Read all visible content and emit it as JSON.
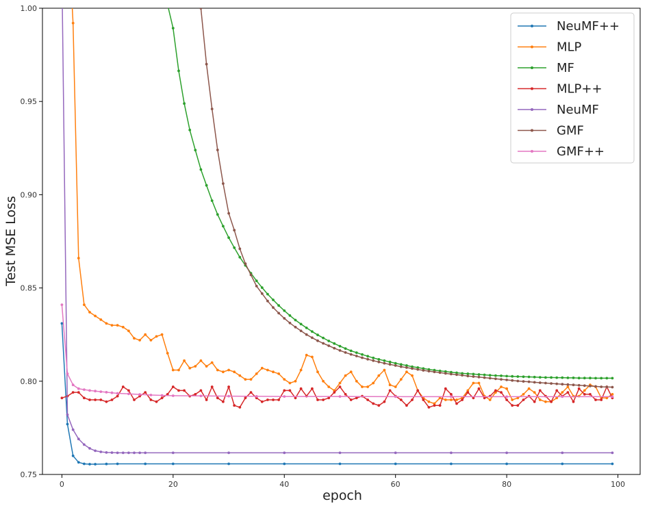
{
  "chart_data": {
    "type": "line",
    "title": "",
    "xlabel": "epoch",
    "ylabel": "Test MSE Loss",
    "xlim": [
      -3.5,
      104
    ],
    "ylim": [
      0.75,
      1.0
    ],
    "xticks": [
      "0",
      "20",
      "40",
      "60",
      "80",
      "100"
    ],
    "yticks": [
      "0.75",
      "0.80",
      "0.85",
      "0.90",
      "0.95",
      "1.00"
    ],
    "grid": false,
    "legend_position": "top-right",
    "series": [
      {
        "name": "NeuMF++",
        "color": "#1f77b4",
        "x": [
          0,
          1,
          2,
          3,
          4,
          5,
          6,
          8,
          10,
          15,
          20,
          30,
          40,
          50,
          60,
          70,
          80,
          90,
          99
        ],
        "y": [
          0.831,
          0.777,
          0.76,
          0.7565,
          0.7557,
          0.7555,
          0.7555,
          0.7556,
          0.7557,
          0.7557,
          0.7557,
          0.7557,
          0.7557,
          0.7557,
          0.7557,
          0.7557,
          0.7557,
          0.7557,
          0.7557
        ]
      },
      {
        "name": "MLP",
        "color": "#ff7f0e",
        "x": [
          1,
          2,
          3,
          4,
          5,
          6,
          7,
          8,
          9,
          10,
          11,
          12,
          13,
          14,
          15,
          16,
          17,
          18,
          19,
          20,
          21,
          22,
          23,
          24,
          25,
          26,
          27,
          28,
          29,
          30,
          31,
          32,
          33,
          34,
          35,
          36,
          37,
          38,
          39,
          40,
          41,
          42,
          43,
          44,
          45,
          46,
          47,
          48,
          49,
          50,
          51,
          52,
          53,
          54,
          55,
          56,
          57,
          58,
          59,
          60,
          61,
          62,
          63,
          64,
          65,
          66,
          67,
          68,
          69,
          70,
          71,
          72,
          73,
          74,
          75,
          76,
          77,
          78,
          79,
          80,
          81,
          82,
          83,
          84,
          85,
          86,
          87,
          88,
          89,
          90,
          91,
          92,
          93,
          94,
          95,
          96,
          97,
          98,
          99
        ],
        "y": [
          1.05,
          0.992,
          0.866,
          0.841,
          0.837,
          0.835,
          0.833,
          0.831,
          0.83,
          0.83,
          0.829,
          0.827,
          0.823,
          0.822,
          0.825,
          0.822,
          0.824,
          0.825,
          0.815,
          0.806,
          0.806,
          0.811,
          0.807,
          0.808,
          0.811,
          0.808,
          0.81,
          0.806,
          0.805,
          0.806,
          0.805,
          0.803,
          0.801,
          0.801,
          0.804,
          0.807,
          0.806,
          0.805,
          0.804,
          0.801,
          0.799,
          0.8,
          0.806,
          0.814,
          0.813,
          0.805,
          0.8,
          0.797,
          0.795,
          0.799,
          0.803,
          0.805,
          0.8,
          0.797,
          0.797,
          0.799,
          0.803,
          0.806,
          0.798,
          0.797,
          0.801,
          0.805,
          0.803,
          0.795,
          0.791,
          0.789,
          0.788,
          0.791,
          0.79,
          0.79,
          0.79,
          0.791,
          0.795,
          0.799,
          0.799,
          0.792,
          0.79,
          0.794,
          0.797,
          0.796,
          0.79,
          0.791,
          0.793,
          0.796,
          0.794,
          0.79,
          0.789,
          0.789,
          0.791,
          0.794,
          0.797,
          0.792,
          0.792,
          0.795,
          0.798,
          0.797,
          0.791,
          0.791,
          0.793
        ]
      },
      {
        "name": "MF",
        "color": "#2ca02c",
        "x": [
          19,
          20,
          21,
          22,
          23,
          24,
          25,
          26,
          27,
          28,
          29,
          30,
          31,
          32,
          33,
          34,
          35,
          36,
          37,
          38,
          39,
          40,
          41,
          42,
          43,
          44,
          45,
          46,
          47,
          48,
          49,
          50,
          51,
          52,
          53,
          54,
          55,
          56,
          57,
          58,
          59,
          60,
          61,
          62,
          63,
          64,
          65,
          66,
          67,
          68,
          69,
          70,
          71,
          72,
          73,
          74,
          75,
          76,
          77,
          78,
          79,
          80,
          81,
          82,
          83,
          84,
          85,
          86,
          87,
          88,
          89,
          90,
          91,
          92,
          93,
          94,
          95,
          96,
          97,
          98,
          99
        ],
        "y": [
          1.002,
          0.9893,
          0.9664,
          0.9489,
          0.9347,
          0.9239,
          0.9135,
          0.905,
          0.8968,
          0.8894,
          0.8831,
          0.877,
          0.8716,
          0.8665,
          0.8621,
          0.8579,
          0.8538,
          0.8502,
          0.8467,
          0.8436,
          0.8406,
          0.8378,
          0.8352,
          0.8328,
          0.8306,
          0.8286,
          0.8266,
          0.8248,
          0.8232,
          0.8216,
          0.8202,
          0.8188,
          0.8175,
          0.8163,
          0.8153,
          0.8143,
          0.8134,
          0.8125,
          0.8117,
          0.811,
          0.8103,
          0.8096,
          0.809,
          0.8084,
          0.8078,
          0.8073,
          0.8068,
          0.8063,
          0.8059,
          0.8055,
          0.8052,
          0.8048,
          0.8045,
          0.8042,
          0.804,
          0.8038,
          0.8036,
          0.8034,
          0.8032,
          0.803,
          0.8029,
          0.8027,
          0.8026,
          0.8025,
          0.8024,
          0.8023,
          0.8022,
          0.8021,
          0.802,
          0.802,
          0.8019,
          0.8019,
          0.8018,
          0.8018,
          0.8017,
          0.8017,
          0.8017,
          0.8016,
          0.8016,
          0.8016,
          0.8016
        ]
      },
      {
        "name": "MLP++",
        "color": "#d62728",
        "x": [
          0,
          1,
          2,
          3,
          4,
          5,
          6,
          7,
          8,
          9,
          10,
          11,
          12,
          13,
          14,
          15,
          16,
          17,
          18,
          19,
          20,
          21,
          22,
          23,
          24,
          25,
          26,
          27,
          28,
          29,
          30,
          31,
          32,
          33,
          34,
          35,
          36,
          37,
          38,
          39,
          40,
          41,
          42,
          43,
          44,
          45,
          46,
          47,
          48,
          49,
          50,
          51,
          52,
          53,
          54,
          55,
          56,
          57,
          58,
          59,
          60,
          61,
          62,
          63,
          64,
          65,
          66,
          67,
          68,
          69,
          70,
          71,
          72,
          73,
          74,
          75,
          76,
          77,
          78,
          79,
          80,
          81,
          82,
          83,
          84,
          85,
          86,
          87,
          88,
          89,
          90,
          91,
          92,
          93,
          94,
          95,
          96,
          97,
          98,
          99
        ],
        "y": [
          0.791,
          0.792,
          0.794,
          0.794,
          0.791,
          0.79,
          0.79,
          0.79,
          0.789,
          0.79,
          0.792,
          0.797,
          0.795,
          0.79,
          0.792,
          0.794,
          0.79,
          0.789,
          0.791,
          0.793,
          0.797,
          0.795,
          0.795,
          0.792,
          0.793,
          0.795,
          0.79,
          0.797,
          0.791,
          0.789,
          0.797,
          0.787,
          0.786,
          0.791,
          0.794,
          0.791,
          0.789,
          0.79,
          0.79,
          0.79,
          0.795,
          0.795,
          0.791,
          0.796,
          0.792,
          0.796,
          0.79,
          0.79,
          0.791,
          0.794,
          0.797,
          0.793,
          0.79,
          0.791,
          0.792,
          0.79,
          0.788,
          0.787,
          0.789,
          0.795,
          0.792,
          0.79,
          0.787,
          0.79,
          0.795,
          0.79,
          0.786,
          0.787,
          0.787,
          0.796,
          0.793,
          0.788,
          0.79,
          0.794,
          0.791,
          0.796,
          0.791,
          0.792,
          0.795,
          0.794,
          0.79,
          0.787,
          0.787,
          0.79,
          0.792,
          0.789,
          0.795,
          0.792,
          0.789,
          0.795,
          0.792,
          0.794,
          0.789,
          0.796,
          0.793,
          0.793,
          0.79,
          0.79,
          0.797,
          0.791
        ]
      },
      {
        "name": "NeuMF",
        "color": "#9467bd",
        "x": [
          0,
          1,
          2,
          3,
          4,
          5,
          6,
          7,
          8,
          9,
          10,
          11,
          12,
          13,
          14,
          15,
          20,
          30,
          40,
          50,
          60,
          70,
          80,
          90,
          99
        ],
        "y": [
          1.02,
          0.782,
          0.774,
          0.769,
          0.766,
          0.764,
          0.7627,
          0.7621,
          0.7618,
          0.7617,
          0.7616,
          0.7616,
          0.7616,
          0.7616,
          0.7616,
          0.7616,
          0.7616,
          0.7616,
          0.7616,
          0.7616,
          0.7616,
          0.7616,
          0.7616,
          0.7616,
          0.7616
        ]
      },
      {
        "name": "GMF",
        "color": "#8c564b",
        "x": [
          25,
          26,
          27,
          28,
          29,
          30,
          31,
          32,
          33,
          34,
          35,
          36,
          37,
          38,
          39,
          40,
          41,
          42,
          43,
          44,
          45,
          46,
          47,
          48,
          49,
          50,
          51,
          52,
          53,
          54,
          55,
          56,
          57,
          58,
          59,
          60,
          61,
          62,
          63,
          64,
          65,
          66,
          67,
          68,
          69,
          70,
          71,
          72,
          73,
          74,
          75,
          76,
          77,
          78,
          79,
          80,
          81,
          82,
          83,
          84,
          85,
          86,
          87,
          88,
          89,
          90,
          91,
          92,
          93,
          94,
          95,
          96,
          97,
          98,
          99
        ],
        "y": [
          1.0,
          0.97,
          0.946,
          0.924,
          0.906,
          0.89,
          0.881,
          0.871,
          0.863,
          0.857,
          0.851,
          0.847,
          0.843,
          0.8395,
          0.8365,
          0.8337,
          0.8312,
          0.829,
          0.827,
          0.825,
          0.8233,
          0.8217,
          0.8203,
          0.819,
          0.8177,
          0.8165,
          0.8154,
          0.8144,
          0.8135,
          0.8126,
          0.8118,
          0.811,
          0.8103,
          0.8096,
          0.809,
          0.8084,
          0.8078,
          0.8073,
          0.8068,
          0.8063,
          0.8058,
          0.8054,
          0.805,
          0.8046,
          0.8042,
          0.8038,
          0.8035,
          0.8032,
          0.8028,
          0.8025,
          0.8022,
          0.8019,
          0.8016,
          0.8013,
          0.801,
          0.8007,
          0.8004,
          0.8001,
          0.7999,
          0.7997,
          0.7994,
          0.7992,
          0.799,
          0.7988,
          0.7986,
          0.7984,
          0.7982,
          0.798,
          0.7978,
          0.7976,
          0.7974,
          0.7972,
          0.797,
          0.7969,
          0.7968
        ]
      },
      {
        "name": "GMF++",
        "color": "#e377c2",
        "x": [
          0,
          1,
          2,
          3,
          4,
          5,
          6,
          7,
          8,
          9,
          10,
          12,
          14,
          16,
          18,
          20,
          25,
          30,
          35,
          40,
          50,
          60,
          70,
          80,
          90,
          99
        ],
        "y": [
          0.841,
          0.804,
          0.798,
          0.796,
          0.7955,
          0.795,
          0.7947,
          0.7944,
          0.7941,
          0.7938,
          0.7935,
          0.7932,
          0.7929,
          0.7926,
          0.7924,
          0.7922,
          0.7921,
          0.792,
          0.7919,
          0.7918,
          0.7918,
          0.7917,
          0.7917,
          0.7917,
          0.7917,
          0.7917
        ]
      }
    ]
  }
}
